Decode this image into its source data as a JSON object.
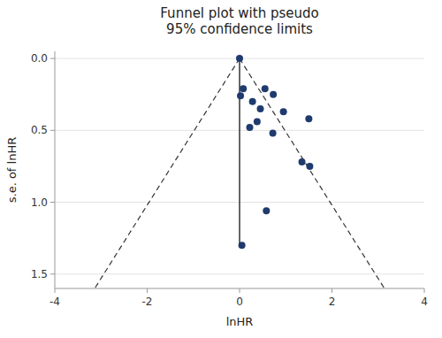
{
  "chart_data": {
    "type": "scatter",
    "title": "Funnel plot with pseudo\n95% confidence limits",
    "xlabel": "lnHR",
    "ylabel": "s.e. of lnHR",
    "xlim": [
      -4,
      4
    ],
    "ylim": [
      1.6,
      -0.05
    ],
    "xticks": [
      -4,
      -2,
      0,
      2,
      4
    ],
    "yticks": [
      {
        "value": 0,
        "label": "0.0"
      },
      0.5,
      {
        "value": 1,
        "label": "1.0"
      },
      1.5
    ],
    "grid": true,
    "series": [
      {
        "type": "scatter",
        "color": "#1f3a6e",
        "x": [
          0.0,
          0.08,
          0.02,
          0.55,
          0.73,
          0.28,
          0.45,
          0.38,
          0.22,
          0.95,
          1.5,
          0.72,
          1.35,
          1.52,
          0.58,
          0.05
        ],
        "values": [
          0.0,
          0.21,
          0.26,
          0.21,
          0.25,
          0.3,
          0.35,
          0.44,
          0.48,
          0.37,
          0.42,
          0.52,
          0.72,
          0.75,
          1.06,
          1.3
        ]
      },
      {
        "type": "line",
        "line_style": "dashed",
        "color": "#333333",
        "x": [
          0.0,
          -3.136
        ],
        "values": [
          0.0,
          1.6
        ]
      },
      {
        "type": "line",
        "line_style": "dashed",
        "color": "#333333",
        "x": [
          0.0,
          3.136
        ],
        "values": [
          0.0,
          1.6
        ]
      },
      {
        "type": "line",
        "line_style": "solid",
        "color": "#000000",
        "x": [
          0.0,
          0.0
        ],
        "values": [
          0.0,
          1.3
        ]
      }
    ]
  }
}
